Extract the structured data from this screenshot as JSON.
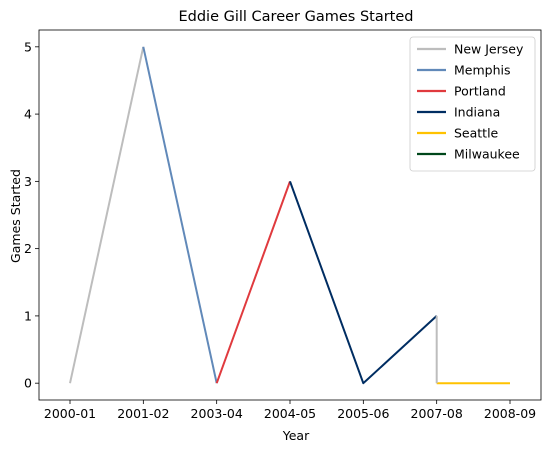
{
  "chart_data": {
    "type": "line",
    "title": "Eddie Gill Career Games Started",
    "xlabel": "Year",
    "ylabel": "Games Started",
    "categories": [
      "2000-01",
      "2001-02",
      "2003-04",
      "2004-05",
      "2005-06",
      "2007-08",
      "2008-09"
    ],
    "ylim": [
      -0.25,
      5.25
    ],
    "yticks": [
      0,
      1,
      2,
      3,
      4,
      5
    ],
    "grid": false,
    "legend_position": "top-right",
    "series": [
      {
        "name": "New Jersey",
        "color": "#bdbdbd",
        "points": [
          [
            "2000-01",
            0
          ],
          [
            "2001-02",
            5
          ]
        ]
      },
      {
        "name": "Memphis",
        "color": "#6189b9",
        "points": [
          [
            "2001-02",
            5
          ],
          [
            "2003-04",
            0
          ]
        ]
      },
      {
        "name": "Portland",
        "color": "#e03a3e",
        "points": [
          [
            "2003-04",
            0
          ],
          [
            "2004-05",
            3
          ]
        ]
      },
      {
        "name": "Indiana",
        "color": "#002d62",
        "points": [
          [
            "2004-05",
            3
          ],
          [
            "2005-06",
            0
          ],
          [
            "2007-08",
            1
          ]
        ]
      },
      {
        "name": "Seattle",
        "color": "#ffc200",
        "points": [
          [
            "2007-08",
            0
          ],
          [
            "2008-09",
            0
          ]
        ]
      },
      {
        "name": "Milwaukee",
        "color": "#00471b",
        "points": []
      },
      {
        "name": "",
        "color": "#bdbdbd",
        "points": [
          [
            "2007-08",
            1
          ],
          [
            "2007-08",
            0
          ]
        ]
      }
    ]
  }
}
